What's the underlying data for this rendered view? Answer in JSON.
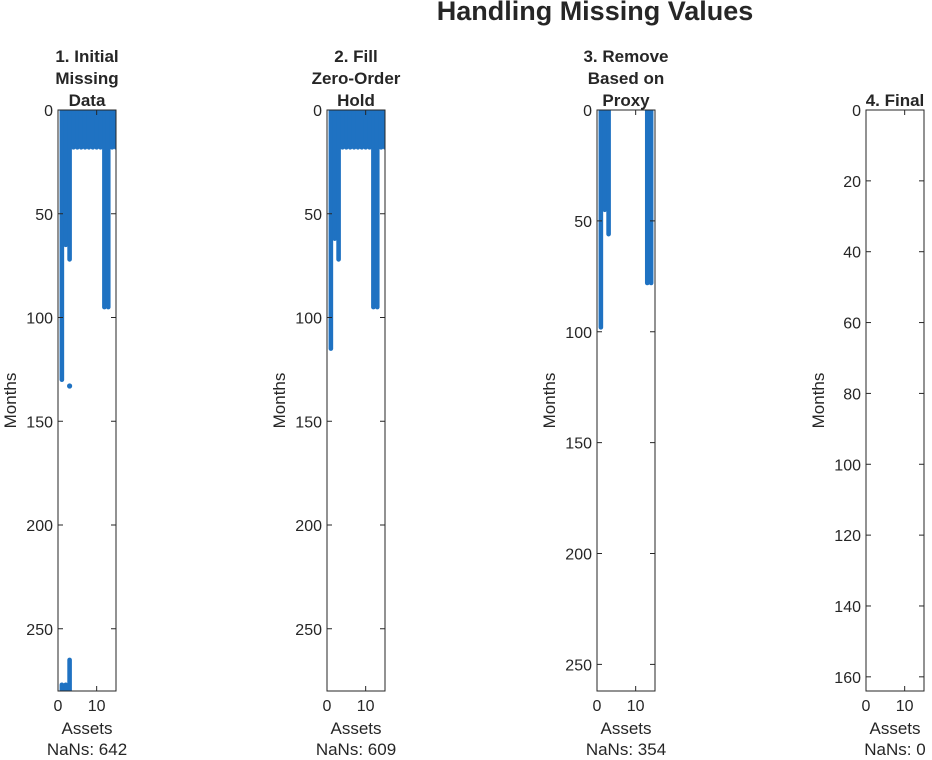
{
  "figure_title": "Handling Missing Values",
  "chart_data": [
    {
      "type": "scatter",
      "title": [
        "1. Initial",
        "Missing",
        "Data"
      ],
      "xlabel": "Assets",
      "ylabel": "Months",
      "note": "NaNs: 642",
      "xlim": [
        0,
        15
      ],
      "ylim": [
        0,
        280
      ],
      "y_reversed": true,
      "xticks": [
        0,
        10
      ],
      "yticks": [
        0,
        50,
        100,
        150,
        200,
        250
      ],
      "color": "#1f72c2",
      "segments": [
        {
          "x": 1,
          "y_from": 0,
          "y_to": 130
        },
        {
          "x": 2,
          "y_from": 0,
          "y_to": 65
        },
        {
          "x": 3,
          "y_from": 0,
          "y_to": 72
        },
        {
          "x": 4,
          "y_from": 0,
          "y_to": 18
        },
        {
          "x": 5,
          "y_from": 0,
          "y_to": 18
        },
        {
          "x": 6,
          "y_from": 0,
          "y_to": 18
        },
        {
          "x": 7,
          "y_from": 0,
          "y_to": 18
        },
        {
          "x": 8,
          "y_from": 0,
          "y_to": 18
        },
        {
          "x": 9,
          "y_from": 0,
          "y_to": 18
        },
        {
          "x": 10,
          "y_from": 0,
          "y_to": 18
        },
        {
          "x": 11,
          "y_from": 0,
          "y_to": 18
        },
        {
          "x": 12,
          "y_from": 0,
          "y_to": 95
        },
        {
          "x": 13,
          "y_from": 0,
          "y_to": 95
        },
        {
          "x": 14,
          "y_from": 0,
          "y_to": 18
        },
        {
          "x": 15,
          "y_from": 0,
          "y_to": 18
        },
        {
          "x": 1,
          "y_from": 277,
          "y_to": 280
        },
        {
          "x": 2,
          "y_from": 277,
          "y_to": 280
        },
        {
          "x": 3,
          "y_from": 265,
          "y_to": 280
        }
      ],
      "points": [
        {
          "x": 3,
          "y": 133
        }
      ]
    },
    {
      "type": "scatter",
      "title": [
        "2. Fill",
        "Zero-Order",
        "Hold"
      ],
      "xlabel": "Assets",
      "ylabel": "Months",
      "note": "NaNs: 609",
      "xlim": [
        0,
        15
      ],
      "ylim": [
        0,
        280
      ],
      "y_reversed": true,
      "xticks": [
        0,
        10
      ],
      "yticks": [
        0,
        50,
        100,
        150,
        200,
        250
      ],
      "color": "#1f72c2",
      "segments": [
        {
          "x": 1,
          "y_from": 0,
          "y_to": 115
        },
        {
          "x": 2,
          "y_from": 0,
          "y_to": 62
        },
        {
          "x": 3,
          "y_from": 0,
          "y_to": 72
        },
        {
          "x": 4,
          "y_from": 0,
          "y_to": 18
        },
        {
          "x": 5,
          "y_from": 0,
          "y_to": 18
        },
        {
          "x": 6,
          "y_from": 0,
          "y_to": 18
        },
        {
          "x": 7,
          "y_from": 0,
          "y_to": 18
        },
        {
          "x": 8,
          "y_from": 0,
          "y_to": 18
        },
        {
          "x": 9,
          "y_from": 0,
          "y_to": 18
        },
        {
          "x": 10,
          "y_from": 0,
          "y_to": 18
        },
        {
          "x": 11,
          "y_from": 0,
          "y_to": 18
        },
        {
          "x": 12,
          "y_from": 0,
          "y_to": 95
        },
        {
          "x": 13,
          "y_from": 0,
          "y_to": 95
        },
        {
          "x": 14,
          "y_from": 0,
          "y_to": 18
        },
        {
          "x": 15,
          "y_from": 0,
          "y_to": 18
        }
      ],
      "points": []
    },
    {
      "type": "scatter",
      "title": [
        "3. Remove",
        "Based on",
        "Proxy"
      ],
      "xlabel": "Assets",
      "ylabel": "Months",
      "note": "NaNs: 354",
      "xlim": [
        0,
        15
      ],
      "ylim": [
        0,
        262
      ],
      "y_reversed": true,
      "xticks": [
        0,
        10
      ],
      "yticks": [
        0,
        50,
        100,
        150,
        200,
        250
      ],
      "color": "#1f72c2",
      "segments": [
        {
          "x": 1,
          "y_from": 0,
          "y_to": 98
        },
        {
          "x": 2,
          "y_from": 0,
          "y_to": 45
        },
        {
          "x": 3,
          "y_from": 0,
          "y_to": 56
        },
        {
          "x": 13,
          "y_from": 0,
          "y_to": 78
        },
        {
          "x": 14,
          "y_from": 0,
          "y_to": 78
        }
      ],
      "points": []
    },
    {
      "type": "scatter",
      "title": [
        "4. Final"
      ],
      "xlabel": "Assets",
      "ylabel": "Months",
      "note": "NaNs: 0",
      "xlim": [
        0,
        15
      ],
      "ylim": [
        0,
        164
      ],
      "y_reversed": true,
      "xticks": [
        0,
        10
      ],
      "yticks": [
        0,
        20,
        40,
        60,
        80,
        100,
        120,
        140,
        160
      ],
      "color": "#1f72c2",
      "segments": [],
      "points": []
    }
  ]
}
